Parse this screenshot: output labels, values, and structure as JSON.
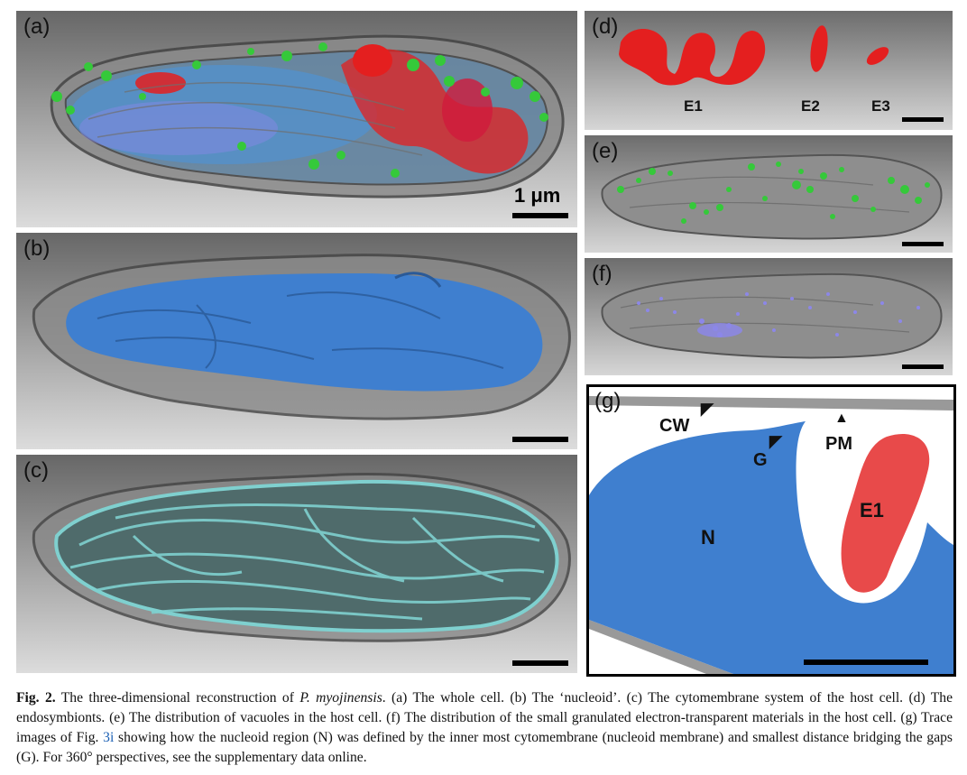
{
  "panels": {
    "a": {
      "label": "(a)",
      "scale_text": "1 μm"
    },
    "b": {
      "label": "(b)"
    },
    "c": {
      "label": "(c)"
    },
    "d": {
      "label": "(d)",
      "e1": "E1",
      "e2": "E2",
      "e3": "E3"
    },
    "e": {
      "label": "(e)"
    },
    "f": {
      "label": "(f)"
    },
    "g": {
      "label": "(g)",
      "cw": "CW",
      "pm": "PM",
      "g_label": "G",
      "n": "N",
      "e1": "E1"
    }
  },
  "colors": {
    "nucleoid": "#3f7fcf",
    "endosymbiont": "#e41f1f",
    "vacuole": "#35c93a",
    "granule": "#8c87e8",
    "cytomembrane": "#7fd0cf",
    "background_top": "#6e6e6e",
    "background_bottom": "#d9d9d9"
  },
  "caption": {
    "fig": "Fig. 2.",
    "t1": " The three-dimensional reconstruction of ",
    "species": "P. myojinensis",
    "t2": ". (a) The whole cell. (b) The ‘nucleoid’. (c) The cytomembrane system of the host cell. (d) The endosymbionts. (e) The distribution of vacuoles in the host cell. (f) The distribution of the small granulated electron-transparent materials in the host cell. (g) Trace images of Fig. ",
    "ref": "3i",
    "t3": " showing how the nucleoid region (N) was defined by the inner most cytomembrane (nucleoid membrane) and smallest distance bridging the gaps (G). For 360° perspectives, see the supplementary data online."
  }
}
